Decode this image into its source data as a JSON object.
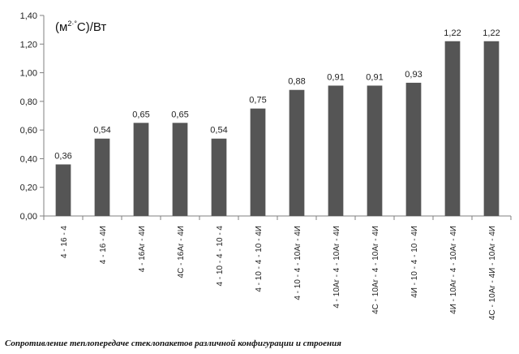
{
  "chart_data": {
    "type": "bar",
    "unit_label": "(м2·°С)/Вт",
    "categories": [
      "4 - 16 - 4",
      "4 - 16 - 4И",
      "4 - 16Ar - 4И",
      "4С - 16Ar - 4И",
      "4 - 10 - 4 - 10 - 4",
      "4 - 10 - 4 - 10 - 4И",
      "4 - 10 - 4 - 10Ar - 4И",
      "4 - 10Ar - 4 - 10Ar - 4И",
      "4С - 10Ar - 4 - 10Ar - 4И",
      "4И - 10 - 4 - 10 - 4И",
      "4И - 10Ar - 4 - 10Ar - 4И",
      "4С - 10Ar - 4И - 10Ar - 4И"
    ],
    "values": [
      0.36,
      0.54,
      0.65,
      0.65,
      0.54,
      0.75,
      0.88,
      0.91,
      0.91,
      0.93,
      1.22,
      1.22
    ],
    "value_labels": [
      "0,36",
      "0,54",
      "0,65",
      "0,65",
      "0,54",
      "0,75",
      "0,88",
      "0,91",
      "0,91",
      "0,93",
      "1,22",
      "1,22"
    ],
    "ylim": [
      0,
      1.4
    ],
    "yticks": [
      0,
      0.2,
      0.4,
      0.6,
      0.8,
      1.0,
      1.2,
      1.4
    ],
    "ytick_labels": [
      "0,00",
      "0,20",
      "0,40",
      "0,60",
      "0,80",
      "1,00",
      "1,20",
      "1,40"
    ],
    "bar_color": "#555555",
    "grid": false
  },
  "caption": "Сопротивление теплопередаче стеклопакетов различной конфигурации и строения"
}
